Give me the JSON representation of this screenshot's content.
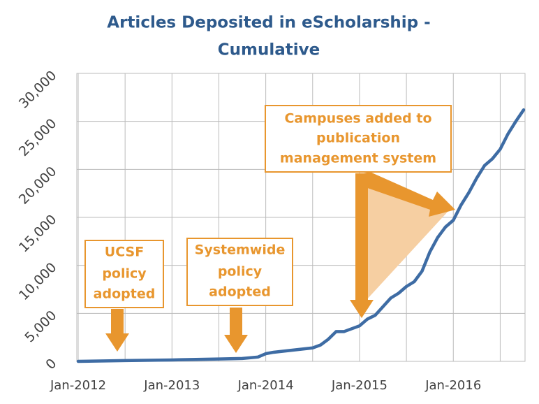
{
  "chart_data": {
    "type": "line",
    "title": [
      "Articles Deposited in eScholarship -",
      "Cumulative"
    ],
    "x": [
      "2012-01",
      "2012-07",
      "2013-01",
      "2013-07",
      "2013-10",
      "2013-12",
      "2014-01",
      "2014-02",
      "2014-07",
      "2014-08",
      "2014-09",
      "2014-10",
      "2014-11",
      "2014-12",
      "2015-01",
      "2015-02",
      "2015-03",
      "2015-04",
      "2015-05",
      "2015-06",
      "2015-07",
      "2015-08",
      "2015-09",
      "2015-10",
      "2015-11",
      "2015-12",
      "2016-01",
      "2016-02",
      "2016-03",
      "2016-04",
      "2016-05",
      "2016-06",
      "2016-07",
      "2016-08",
      "2016-09",
      "2016-10"
    ],
    "series": [
      {
        "name": "Articles",
        "color": "#3e6ca4",
        "values": [
          0,
          80,
          150,
          250,
          300,
          450,
          800,
          950,
          1400,
          1700,
          2300,
          3100,
          3100,
          3400,
          3700,
          4400,
          4800,
          5700,
          6600,
          7100,
          7800,
          8300,
          9400,
          11400,
          12900,
          14000,
          14700,
          16300,
          17600,
          19100,
          20400,
          21100,
          22100,
          23700,
          25000,
          26200
        ]
      }
    ],
    "xlim": [
      "2012-01",
      "2016-10"
    ],
    "xticks": [
      {
        "value": "2012-01",
        "label": "Jan-2012"
      },
      {
        "value": "2012-07",
        "label": null
      },
      {
        "value": "2013-01",
        "label": "Jan-2013"
      },
      {
        "value": "2013-07",
        "label": null
      },
      {
        "value": "2014-01",
        "label": "Jan-2014"
      },
      {
        "value": "2014-07",
        "label": null
      },
      {
        "value": "2015-01",
        "label": "Jan-2015"
      },
      {
        "value": "2015-07",
        "label": null
      },
      {
        "value": "2016-01",
        "label": "Jan-2016"
      },
      {
        "value": "2016-07",
        "label": null
      }
    ],
    "ylim": [
      0,
      30000
    ],
    "yticks": [
      {
        "value": 0,
        "label": "0"
      },
      {
        "value": 5000,
        "label": "5,000"
      },
      {
        "value": 10000,
        "label": "10,000"
      },
      {
        "value": 15000,
        "label": "15,000"
      },
      {
        "value": 20000,
        "label": "20,000"
      },
      {
        "value": 25000,
        "label": "25,000"
      },
      {
        "value": 30000,
        "label": "30,000"
      }
    ],
    "grid": true,
    "annotations": [
      {
        "lines": [
          "UCSF",
          "policy",
          "adopted"
        ],
        "color": "#e8962e"
      },
      {
        "lines": [
          "Systemwide",
          "policy",
          "adopted"
        ],
        "color": "#e8962e"
      },
      {
        "lines": [
          "Campuses added to",
          "publication",
          "management system"
        ],
        "color": "#e8962e"
      }
    ]
  }
}
